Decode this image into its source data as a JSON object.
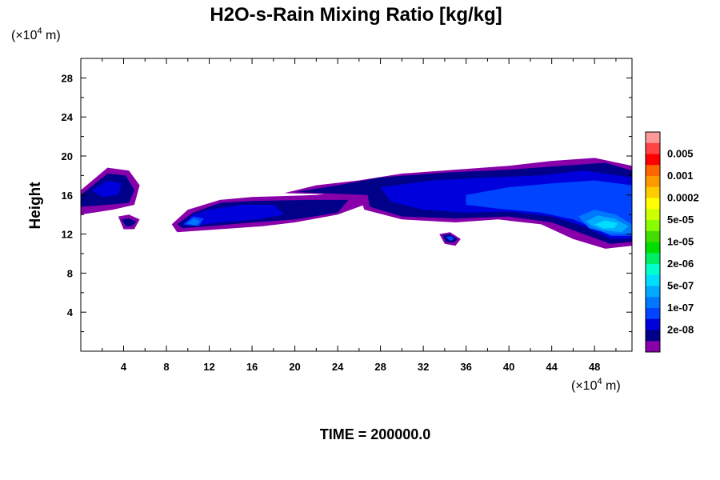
{
  "chart_data": {
    "type": "contour",
    "title": "H2O-s-Rain Mixing Ratio [kg/kg]",
    "ylabel": "Height",
    "x_unit": {
      "prefix": "(×10",
      "exp": "4",
      "suffix": " m)"
    },
    "y_unit": {
      "prefix": "(×10",
      "exp": "4",
      "suffix": " m)"
    },
    "xlim": [
      0,
      51.5
    ],
    "ylim": [
      0,
      30
    ],
    "x_major_ticks": [
      4,
      8,
      12,
      16,
      20,
      24,
      28,
      32,
      36,
      40,
      44,
      48
    ],
    "y_major_ticks": [
      4,
      8,
      12,
      16,
      20,
      24,
      28
    ],
    "x_minor_step": 2,
    "y_minor_step": 2,
    "footer": "TIME = 200000.0",
    "colorbar": {
      "levels": [
        {
          "label": "",
          "color": "#FF9999"
        },
        {
          "label": "0.005",
          "color": "#FF4444"
        },
        {
          "label": "",
          "color": "#FF0000"
        },
        {
          "label": "0.001",
          "color": "#FF6600"
        },
        {
          "label": "",
          "color": "#FF9900"
        },
        {
          "label": "0.0002",
          "color": "#FFCC00"
        },
        {
          "label": "",
          "color": "#FFFF00"
        },
        {
          "label": "5e-05",
          "color": "#CCFF00"
        },
        {
          "label": "",
          "color": "#88FF00"
        },
        {
          "label": "1e-05",
          "color": "#44DD00"
        },
        {
          "label": "",
          "color": "#00DD00"
        },
        {
          "label": "2e-06",
          "color": "#00EE66"
        },
        {
          "label": "",
          "color": "#00FFCC"
        },
        {
          "label": "5e-07",
          "color": "#00DDFF"
        },
        {
          "label": "",
          "color": "#00AAFF"
        },
        {
          "label": "1e-07",
          "color": "#0077FF"
        },
        {
          "label": "",
          "color": "#0044FF"
        },
        {
          "label": "2e-08",
          "color": "#0000DD"
        },
        {
          "label": "",
          "color": "#000088"
        },
        {
          "label": "",
          "color": "#8800AA"
        }
      ]
    },
    "contour_regions": [
      {
        "level": 0,
        "points": [
          [
            0,
            16.5
          ],
          [
            2.5,
            18.8
          ],
          [
            4.5,
            18.5
          ],
          [
            5.5,
            17
          ],
          [
            5,
            15
          ],
          [
            3,
            14.5
          ],
          [
            0,
            14
          ]
        ]
      },
      {
        "level": 1,
        "points": [
          [
            0,
            16
          ],
          [
            2.5,
            18.2
          ],
          [
            4.2,
            18
          ],
          [
            5,
            16.5
          ],
          [
            4.5,
            15.2
          ],
          [
            2.5,
            15
          ],
          [
            0,
            14.8
          ]
        ]
      },
      {
        "level": 2,
        "points": [
          [
            1,
            16.5
          ],
          [
            2.5,
            17.5
          ],
          [
            3.8,
            17.2
          ],
          [
            3.5,
            16
          ],
          [
            2,
            15.8
          ]
        ]
      },
      {
        "level": 0,
        "points": [
          [
            3.5,
            13.8
          ],
          [
            4.5,
            14
          ],
          [
            5.5,
            13.5
          ],
          [
            5,
            12.5
          ],
          [
            4,
            12.5
          ]
        ]
      },
      {
        "level": 1,
        "points": [
          [
            3.8,
            13.5
          ],
          [
            4.5,
            13.6
          ],
          [
            5.2,
            13.3
          ],
          [
            4.8,
            12.8
          ],
          [
            4.2,
            12.8
          ]
        ]
      },
      {
        "level": 0,
        "points": [
          [
            8.5,
            13
          ],
          [
            10,
            14.5
          ],
          [
            13,
            15.5
          ],
          [
            16,
            15.8
          ],
          [
            22,
            16
          ],
          [
            26,
            16.5
          ],
          [
            26.5,
            15
          ],
          [
            24,
            14
          ],
          [
            20,
            13.2
          ],
          [
            17,
            12.8
          ],
          [
            13,
            12.5
          ],
          [
            9,
            12.2
          ]
        ]
      },
      {
        "level": 1,
        "points": [
          [
            9,
            13
          ],
          [
            10.5,
            14.2
          ],
          [
            13,
            15.2
          ],
          [
            16,
            15.4
          ],
          [
            21.5,
            15.5
          ],
          [
            25,
            15.5
          ],
          [
            24,
            14.2
          ],
          [
            20,
            13.5
          ],
          [
            16,
            13.2
          ],
          [
            12,
            12.8
          ],
          [
            9.5,
            12.6
          ]
        ]
      },
      {
        "level": 2,
        "points": [
          [
            9.5,
            13
          ],
          [
            10.5,
            14
          ],
          [
            12,
            14.5
          ],
          [
            15,
            15
          ],
          [
            18,
            15
          ],
          [
            19,
            14
          ],
          [
            16.5,
            13.5
          ],
          [
            13,
            13.2
          ],
          [
            10,
            12.8
          ]
        ]
      },
      {
        "level": 3,
        "points": [
          [
            9.6,
            13
          ],
          [
            10.5,
            13.8
          ],
          [
            11.5,
            13.6
          ],
          [
            11,
            12.8
          ]
        ]
      },
      {
        "level": 4,
        "points": [
          [
            9.9,
            13.1
          ],
          [
            10.6,
            13.6
          ],
          [
            11.2,
            13.3
          ],
          [
            10.7,
            12.9
          ]
        ]
      },
      {
        "level": 0,
        "points": [
          [
            19,
            16.2
          ],
          [
            22,
            17
          ],
          [
            26,
            17.5
          ],
          [
            30,
            18.2
          ],
          [
            35,
            18.6
          ],
          [
            40,
            19
          ],
          [
            44,
            19.5
          ],
          [
            48,
            19.8
          ],
          [
            51.5,
            19
          ],
          [
            51.5,
            10.8
          ],
          [
            49,
            10.5
          ],
          [
            46,
            11.5
          ],
          [
            43,
            13
          ],
          [
            39,
            13.5
          ],
          [
            35,
            13.2
          ],
          [
            30,
            13.5
          ],
          [
            26.5,
            14.5
          ],
          [
            26,
            16
          ]
        ]
      },
      {
        "level": 1,
        "points": [
          [
            20,
            16.3
          ],
          [
            24,
            17
          ],
          [
            28,
            17.8
          ],
          [
            34,
            18.3
          ],
          [
            40,
            18.6
          ],
          [
            45,
            19
          ],
          [
            49,
            19.3
          ],
          [
            51.5,
            18.5
          ],
          [
            51.5,
            11.2
          ],
          [
            49.5,
            11
          ],
          [
            47,
            12
          ],
          [
            44,
            13.2
          ],
          [
            40,
            13.8
          ],
          [
            35,
            13.6
          ],
          [
            30,
            13.8
          ],
          [
            27,
            14.8
          ],
          [
            26.8,
            16
          ]
        ]
      },
      {
        "level": 2,
        "points": [
          [
            28,
            16.8
          ],
          [
            33,
            17.5
          ],
          [
            38,
            17.8
          ],
          [
            43,
            18
          ],
          [
            47,
            18.5
          ],
          [
            51.5,
            17.8
          ],
          [
            51.5,
            11.5
          ],
          [
            49.5,
            11.5
          ],
          [
            47,
            12.8
          ],
          [
            44,
            13.8
          ],
          [
            40,
            14.3
          ],
          [
            36,
            14.2
          ],
          [
            32,
            14.5
          ],
          [
            29,
            15.3
          ]
        ]
      },
      {
        "level": 3,
        "points": [
          [
            36,
            16
          ],
          [
            40,
            16.8
          ],
          [
            44,
            17.2
          ],
          [
            48,
            17.5
          ],
          [
            51.5,
            17
          ],
          [
            51.5,
            11.8
          ],
          [
            49.5,
            11.8
          ],
          [
            48,
            12.6
          ],
          [
            46,
            13.5
          ],
          [
            43,
            14.2
          ],
          [
            39,
            14.6
          ],
          [
            36,
            15
          ]
        ]
      },
      {
        "level": 4,
        "points": [
          [
            46.5,
            13.8
          ],
          [
            48,
            14.5
          ],
          [
            50,
            14
          ],
          [
            51.5,
            13
          ],
          [
            51.5,
            12
          ],
          [
            49.5,
            12
          ],
          [
            47.5,
            12.6
          ]
        ]
      },
      {
        "level": 5,
        "points": [
          [
            47.2,
            13.3
          ],
          [
            48.3,
            13.9
          ],
          [
            49.8,
            13.6
          ],
          [
            51.2,
            12.8
          ],
          [
            50.5,
            12.2
          ],
          [
            48.8,
            12.4
          ],
          [
            47.8,
            12.8
          ]
        ]
      },
      {
        "level": 6,
        "points": [
          [
            48,
            13
          ],
          [
            49,
            13.4
          ],
          [
            50.2,
            13.1
          ],
          [
            49.8,
            12.6
          ],
          [
            48.8,
            12.6
          ]
        ]
      },
      {
        "level": 0,
        "points": [
          [
            33.5,
            12
          ],
          [
            34.5,
            12.2
          ],
          [
            35.5,
            11.5
          ],
          [
            35,
            10.8
          ],
          [
            34,
            11
          ]
        ]
      },
      {
        "level": 1,
        "points": [
          [
            33.8,
            11.9
          ],
          [
            34.5,
            12
          ],
          [
            35.2,
            11.5
          ],
          [
            34.8,
            11.1
          ],
          [
            34.1,
            11.2
          ]
        ]
      },
      {
        "level": 3,
        "points": [
          [
            34.1,
            11.7
          ],
          [
            34.6,
            11.8
          ],
          [
            34.9,
            11.5
          ],
          [
            34.5,
            11.3
          ]
        ]
      }
    ]
  }
}
